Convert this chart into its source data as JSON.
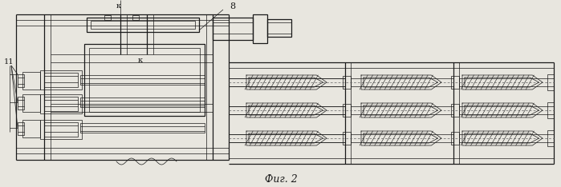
{
  "bg_color": "#e8e6df",
  "line_color": "#1a1a1a",
  "caption": "Фиг. 2",
  "label_k_top": "к",
  "label_8": "8",
  "label_11": "11",
  "label_k_mid": "к",
  "fig_width": 6.99,
  "fig_height": 2.34,
  "dpi": 100
}
